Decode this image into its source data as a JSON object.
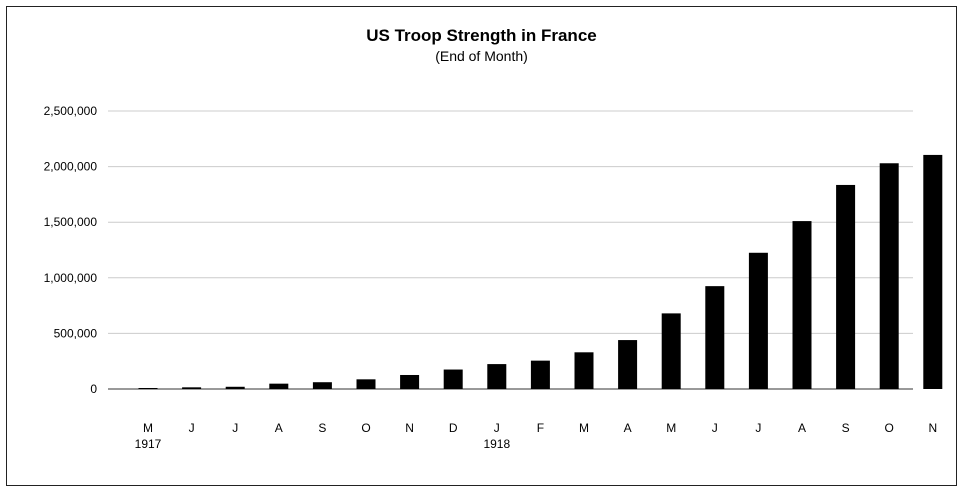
{
  "chart_data": {
    "type": "bar",
    "title": "US Troop Strength in France",
    "subtitle": "(End of Month)",
    "xlabel": "",
    "ylabel": "",
    "categories": [
      "M",
      "J",
      "J",
      "A",
      "S",
      "O",
      "N",
      "D",
      "J",
      "F",
      "M",
      "A",
      "M",
      "J",
      "J",
      "A",
      "S",
      "O",
      "N"
    ],
    "year_labels": [
      {
        "index": 0,
        "label": "1917"
      },
      {
        "index": 8,
        "label": "1918"
      }
    ],
    "values": [
      1300,
      15000,
      20000,
      48000,
      61000,
      87000,
      126000,
      175000,
      224000,
      255000,
      330000,
      440000,
      680000,
      925000,
      1225000,
      1510000,
      1835000,
      2030000,
      2105000
    ],
    "ylim": [
      0,
      2500000
    ],
    "yticks": [
      0,
      500000,
      1000000,
      1500000,
      2000000,
      2500000
    ],
    "ytick_labels": [
      "0",
      "500,000",
      "1,000,000",
      "1,500,000",
      "2,000,000",
      "2,500,000"
    ],
    "grid": true,
    "legend": "none",
    "bar_color": "#000000",
    "grid_color": "#cccccc"
  }
}
